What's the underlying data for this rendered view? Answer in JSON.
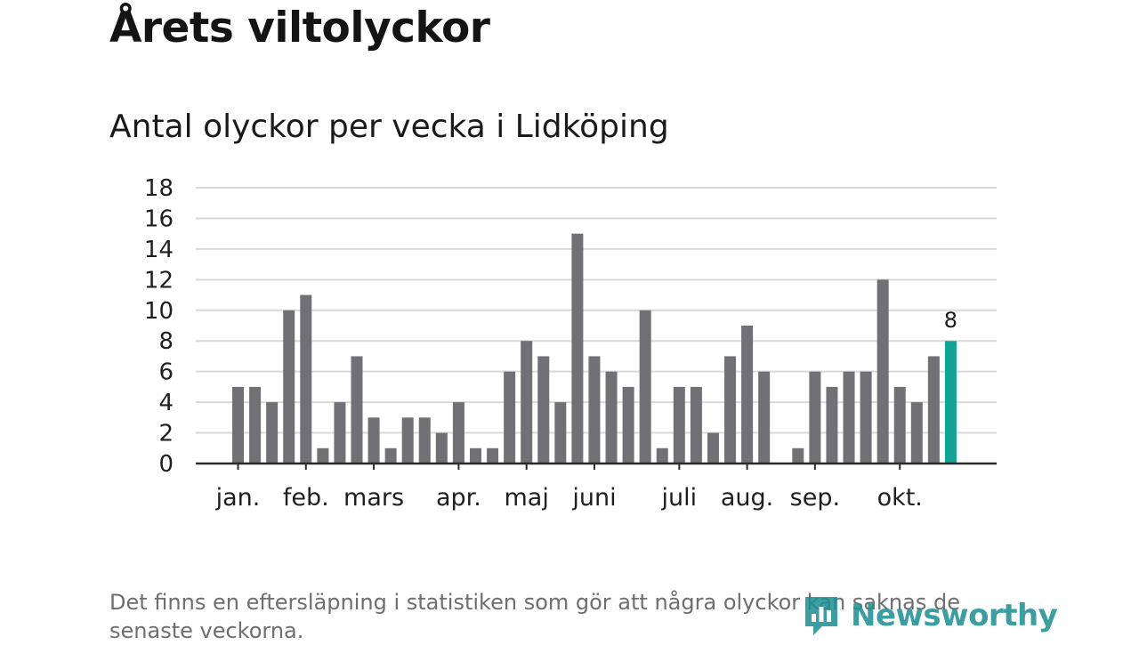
{
  "header": {
    "title": "Årets viltolyckor",
    "subtitle": "Antal olyckor per vecka i Lidköping"
  },
  "chart_data": {
    "type": "bar",
    "title": "Årets viltolyckor",
    "subtitle": "Antal olyckor per vecka i Lidköping",
    "xlabel": "",
    "ylabel": "",
    "ylim": [
      0,
      18
    ],
    "yticks": [
      0,
      2,
      4,
      6,
      8,
      10,
      12,
      14,
      16,
      18
    ],
    "grid": true,
    "weeks": [
      1,
      2,
      3,
      4,
      5,
      6,
      7,
      8,
      9,
      10,
      11,
      12,
      13,
      14,
      15,
      16,
      17,
      18,
      19,
      20,
      21,
      22,
      23,
      24,
      25,
      26,
      27,
      28,
      29,
      30,
      31,
      32,
      33,
      34,
      35,
      36,
      37,
      38,
      39,
      40,
      41,
      42,
      43
    ],
    "values": [
      5,
      5,
      4,
      10,
      11,
      1,
      4,
      7,
      3,
      1,
      3,
      3,
      2,
      4,
      1,
      1,
      6,
      8,
      7,
      4,
      15,
      7,
      6,
      5,
      10,
      1,
      5,
      5,
      2,
      7,
      9,
      6,
      0,
      1,
      6,
      5,
      6,
      6,
      12,
      5,
      4,
      7,
      8
    ],
    "month_labels": [
      "jan.",
      "feb.",
      "mars",
      "apr.",
      "maj",
      "juni",
      "juli",
      "aug.",
      "sep.",
      "okt."
    ],
    "month_tick_weeks": [
      1,
      5,
      9,
      14,
      18,
      22,
      27,
      31,
      35,
      40
    ],
    "highlight_index": 42,
    "highlight_label": "8",
    "colors": {
      "bar": "#717075",
      "highlight": "#12a596",
      "grid": "#d9d9d9",
      "axis": "#2a2a2a"
    }
  },
  "footer": {
    "note": "Det finns en eftersläpning i statistiken som gör att några olyckor kan saknas de senaste veckorna.",
    "brand": "Newsworthy"
  }
}
